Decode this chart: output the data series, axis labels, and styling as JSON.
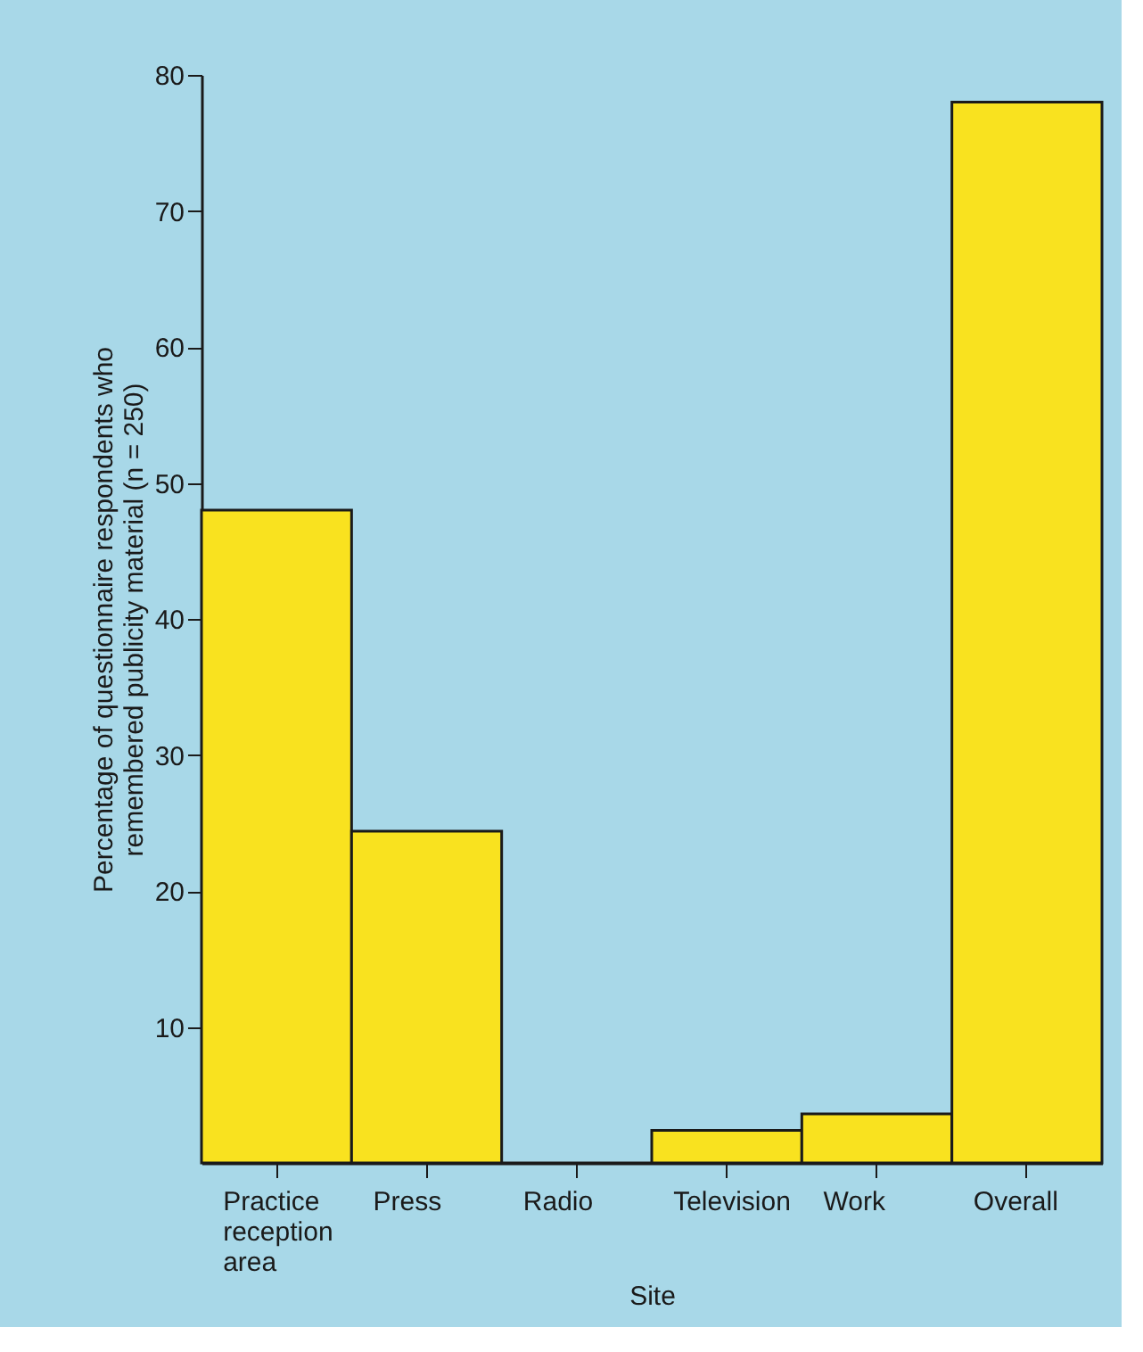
{
  "chart_data": {
    "type": "bar",
    "xlabel": "Site",
    "ylabel": "Percentage of questionnaire respondents who remembered publicity material (n = 250)",
    "categories": [
      "Practice reception area",
      "Press",
      "Radio",
      "Television",
      "Work",
      "Overall"
    ],
    "values": [
      48,
      24.4,
      0,
      2.4,
      3.6,
      78
    ],
    "color": "#f9e21f",
    "ylim": [
      0,
      80
    ],
    "yticks": [
      10,
      20,
      30,
      40,
      50,
      60,
      70,
      80
    ],
    "grid": false
  }
}
